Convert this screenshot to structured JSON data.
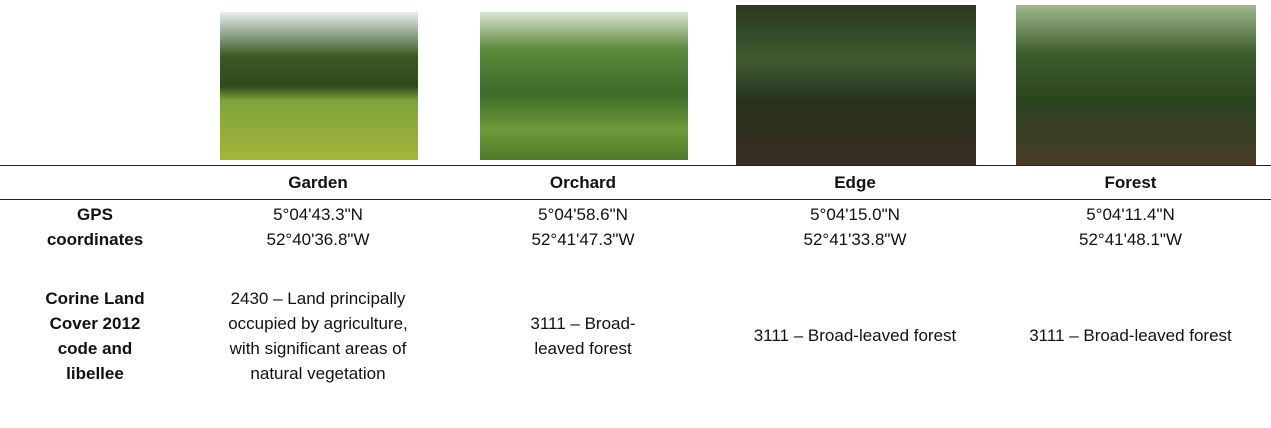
{
  "table": {
    "columns": [
      "Garden",
      "Orchard",
      "Edge",
      "Forest"
    ],
    "rows": [
      {
        "label": "GPS coordinates",
        "cells": [
          [
            "5°04'43.3\"N",
            "52°40'36.8\"W"
          ],
          [
            "5°04'58.6\"N",
            "52°41'47.3\"W"
          ],
          [
            "5°04'15.0\"N",
            "52°41'33.8\"W"
          ],
          [
            "5°04'11.4\"N",
            "52°41'48.1\"W"
          ]
        ]
      },
      {
        "label": "Corine Land Cover 2012 code and libellee",
        "cells": [
          "2430 – Land principally occupied by agriculture, with significant areas of natural vegetation",
          "3111 – Broad-leaved forest",
          "3111 – Broad-leaved forest",
          "3111 – Broad-leaved forest"
        ]
      }
    ]
  }
}
